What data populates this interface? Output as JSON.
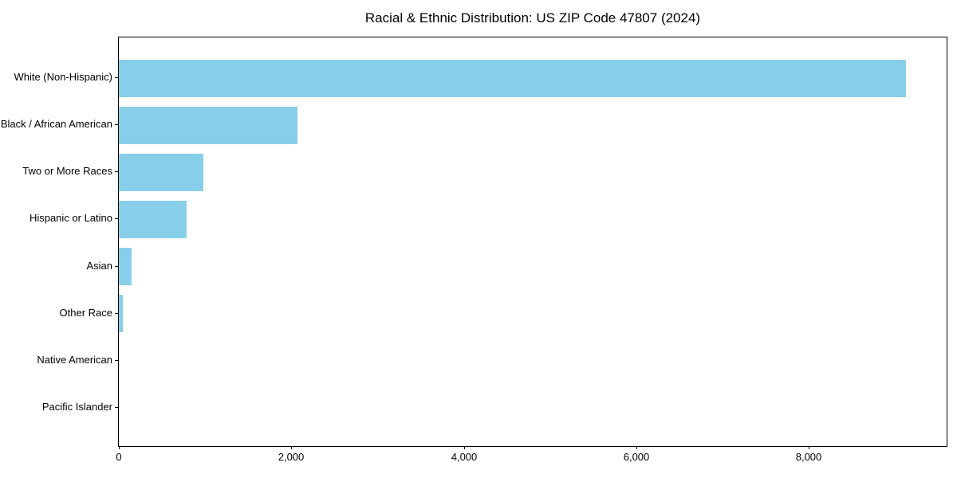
{
  "chart_data": {
    "type": "bar",
    "orientation": "horizontal",
    "title": "Racial & Ethnic Distribution: US ZIP Code 47807 (2024)",
    "categories": [
      "White (Non-Hispanic)",
      "Black / African American",
      "Two or More Races",
      "Hispanic or Latino",
      "Asian",
      "Other Race",
      "Native American",
      "Pacific Islander"
    ],
    "values": [
      9130,
      2070,
      980,
      785,
      150,
      45,
      0,
      0
    ],
    "bar_color": "#87CEEB",
    "axis_color": "#000000",
    "text_color": "#000000",
    "background_color": "#ffffff",
    "xlabel": "",
    "ylabel": "",
    "xlim": [
      0,
      9600
    ],
    "x_ticks": [
      0,
      2000,
      4000,
      6000,
      8000
    ],
    "x_tick_labels": [
      "0",
      "2,000",
      "4,000",
      "6,000",
      "8,000"
    ],
    "grid": false,
    "legend": "none"
  }
}
